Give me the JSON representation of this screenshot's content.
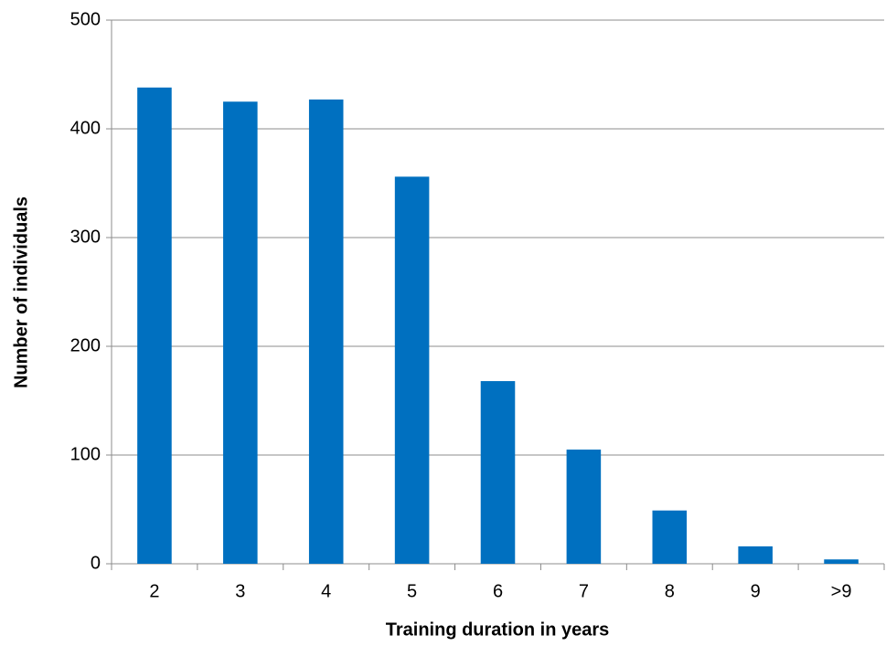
{
  "chart_data": {
    "type": "bar",
    "x_label": "Training duration in years",
    "y_label": "Number of individuals",
    "categories": [
      "2",
      "3",
      "4",
      "5",
      "6",
      "7",
      "8",
      "9",
      ">9"
    ],
    "values": [
      438,
      425,
      427,
      356,
      168,
      105,
      49,
      16,
      4
    ],
    "color": "#0070c0",
    "ylim": [
      0,
      500
    ],
    "yticks": [
      0,
      100,
      200,
      300,
      400,
      500
    ],
    "grid": true
  }
}
